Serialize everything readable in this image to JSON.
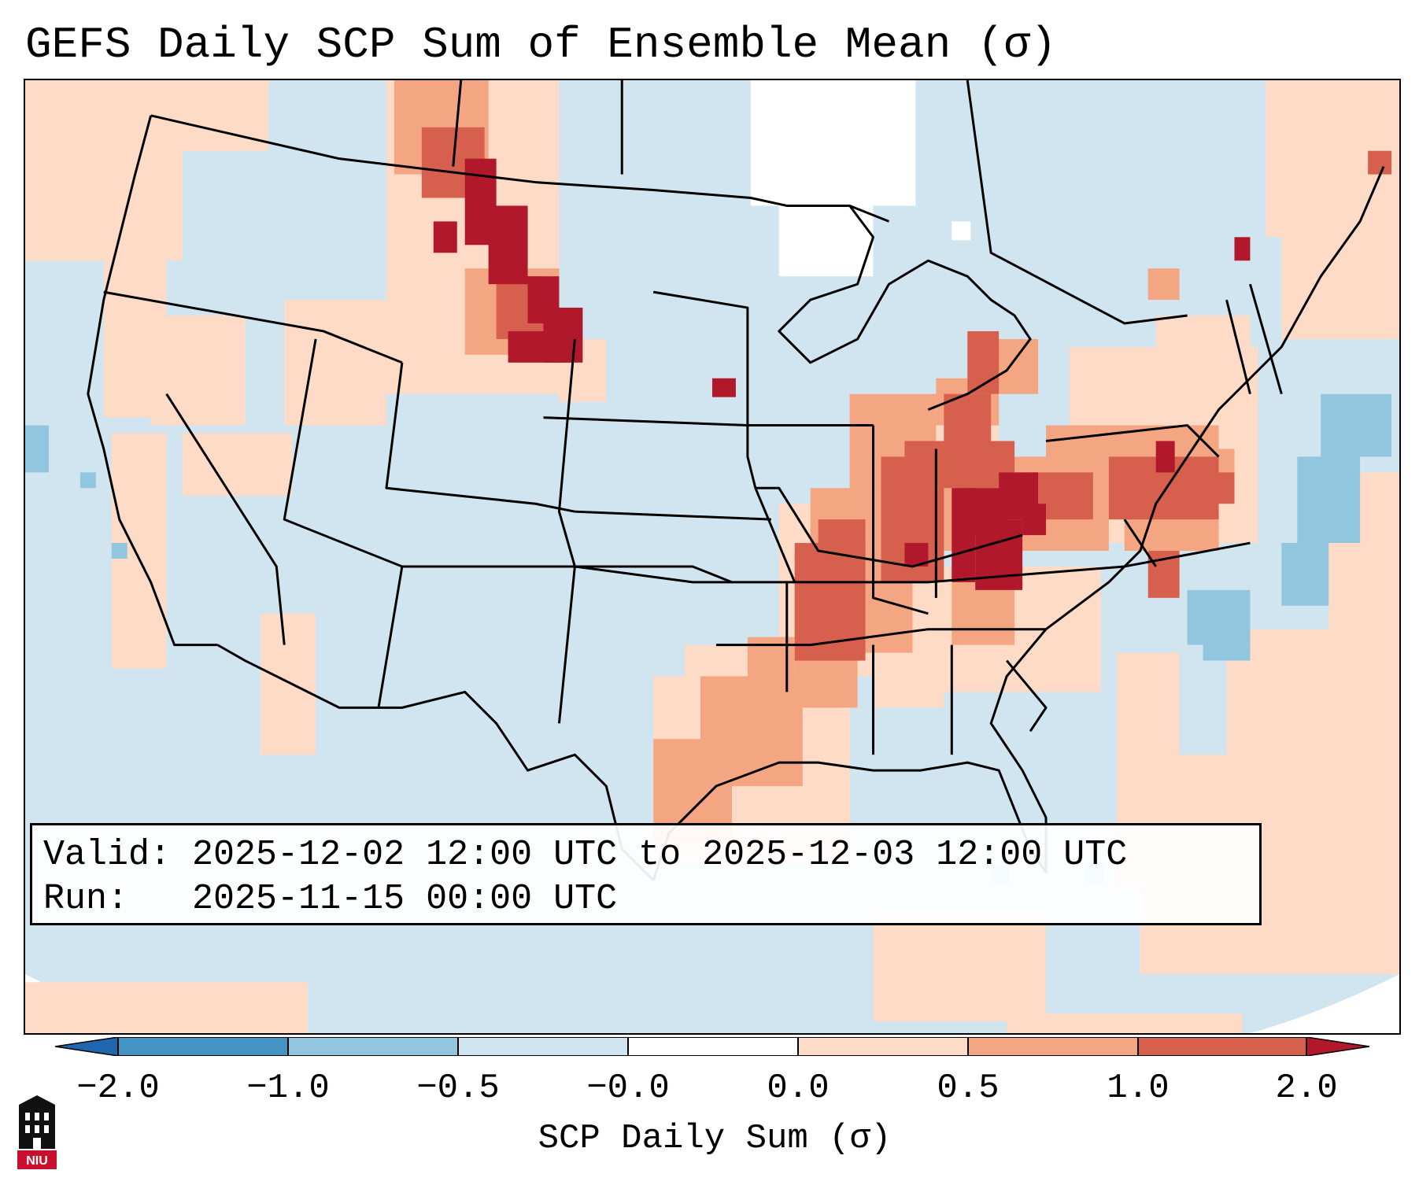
{
  "title": "GEFS Daily SCP Sum of Ensemble Mean (σ)",
  "info": {
    "valid_label": "Valid:",
    "valid_value": "2025-12-02 12:00 UTC to 2025-12-03 12:00 UTC",
    "run_label": "Run:",
    "run_value": "2025-11-15 00:00 UTC"
  },
  "colorbar": {
    "label": "SCP Daily Sum (σ)",
    "ticks": [
      "−2.0",
      "−1.0",
      "−0.5",
      "−0.0",
      "0.0",
      "0.5",
      "1.0",
      "2.0"
    ],
    "bins": [
      {
        "range": "< -2.0",
        "color": "#2166ac"
      },
      {
        "range": "-2.0 to -1.0",
        "color": "#4393c3"
      },
      {
        "range": "-1.0 to -0.5",
        "color": "#92c5de"
      },
      {
        "range": "-0.5 to -0.0",
        "color": "#d1e5f0"
      },
      {
        "range": "-0.0 to 0.0",
        "color": "#ffffff"
      },
      {
        "range": "0.0 to 0.5",
        "color": "#fddbc7"
      },
      {
        "range": "0.5 to 1.0",
        "color": "#f4a582"
      },
      {
        "range": "1.0 to 2.0",
        "color": "#d6604d"
      },
      {
        "range": "> 2.0",
        "color": "#b2182b"
      }
    ]
  },
  "map": {
    "projection": "Lambert Conformal over CONUS",
    "background_color": "#d1e5f0",
    "features": [
      {
        "region": "Northern Rockies / Montana",
        "category": "> 2.0"
      },
      {
        "region": "Indiana / Ohio Valley",
        "category": "> 2.0"
      },
      {
        "region": "Illinois / Missouri / Arkansas",
        "category": "1.0 to 2.0"
      },
      {
        "region": "Pennsylvania / Mid-Atlantic",
        "category": "1.0 to 2.0"
      },
      {
        "region": "Texas / Oklahoma",
        "category": "0.5 to 1.0"
      },
      {
        "region": "Atlantic off Southeast coast",
        "category": "-1.0 to -0.5"
      },
      {
        "region": "Northern Plains (Dakotas)",
        "category": "-0.0 to 0.0"
      }
    ]
  },
  "logo": {
    "text": "NIU",
    "color": "#c8102e"
  }
}
